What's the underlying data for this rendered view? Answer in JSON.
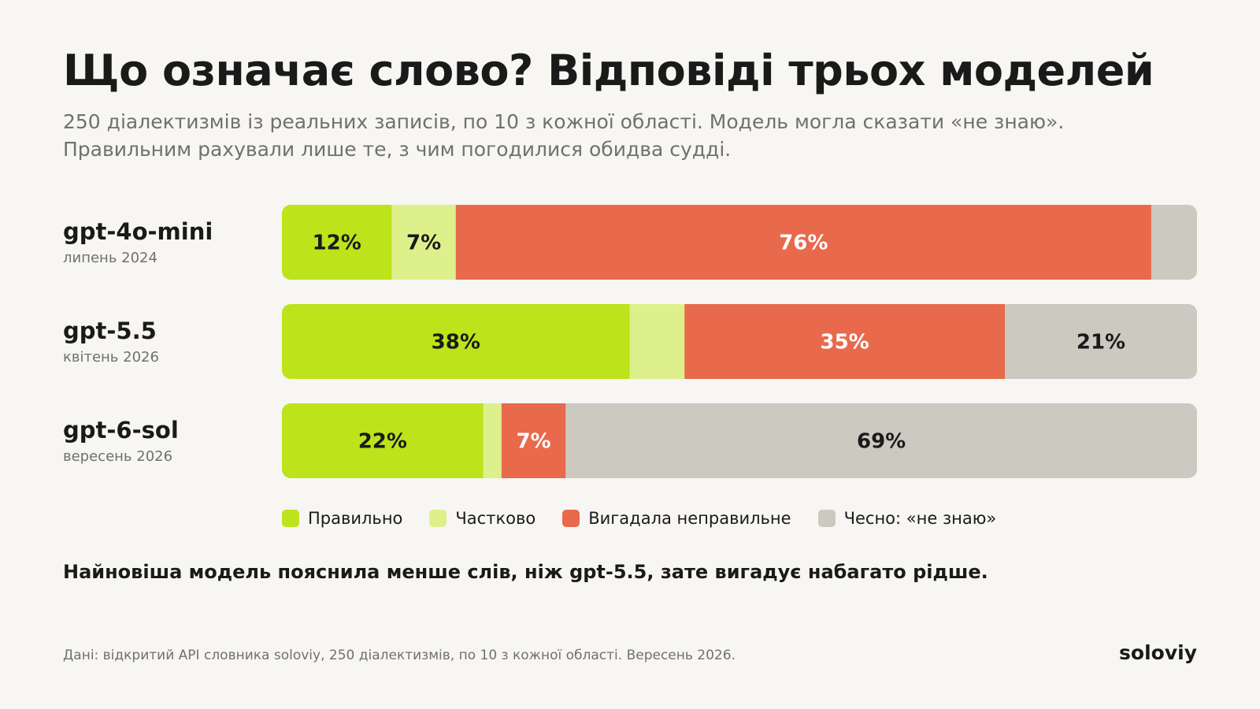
{
  "header": {
    "title": "Що означає слово? Відповіді трьох моделей",
    "subtitle_line1": "250 діалектизмів із реальних записів, по 10 з кожної області. Модель могла сказати «не знаю».",
    "subtitle_line2": "Правильним рахували лише те, з чим погодилися обидва судді."
  },
  "colors": {
    "correct": "#bde31a",
    "partial": "#def08b",
    "wrong": "#e8694c",
    "unknown": "#cbc9c0"
  },
  "chart_data": {
    "type": "bar",
    "orientation": "horizontal-stacked",
    "xlim": [
      0,
      100
    ],
    "categories": [
      {
        "model": "gpt-4o-mini",
        "date": "липень 2024"
      },
      {
        "model": "gpt-5.5",
        "date": "квітень 2026"
      },
      {
        "model": "gpt-6-sol",
        "date": "вересень 2026"
      }
    ],
    "series": [
      {
        "key": "correct",
        "name": "Правильно",
        "values": [
          12,
          38,
          22
        ],
        "labels": [
          "12%",
          "38%",
          "22%"
        ],
        "label_color": "#1a1a1a"
      },
      {
        "key": "partial",
        "name": "Частково",
        "values": [
          7,
          6,
          2
        ],
        "labels": [
          "7%",
          "",
          ""
        ],
        "label_color": "#1a1a1a"
      },
      {
        "key": "wrong",
        "name": "Вигадала неправильне",
        "values": [
          76,
          35,
          7
        ],
        "labels": [
          "76%",
          "35%",
          "7%"
        ],
        "label_color": "#ffffff"
      },
      {
        "key": "unknown",
        "name": "Чесно: «не знаю»",
        "values": [
          5,
          21,
          69
        ],
        "labels": [
          "",
          "21%",
          "69%"
        ],
        "label_color": "#1a1a1a"
      }
    ],
    "legend_position": "bottom"
  },
  "conclusion": "Найновіша модель пояснила менше слів, ніж gpt-5.5, зате вигадує набагато рідше.",
  "footer": {
    "source": "Дані: відкритий API словника soloviy, 250 діалектизмів, по 10 з кожної області. Вересень 2026.",
    "brand": "soloviy"
  }
}
